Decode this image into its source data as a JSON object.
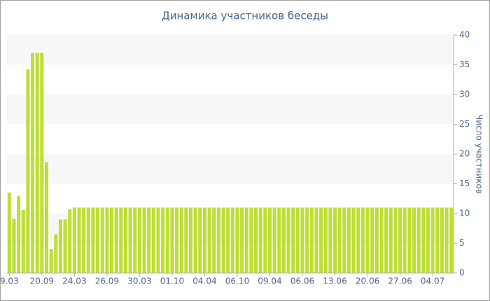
{
  "chart_data": {
    "type": "bar",
    "title": "Динамика участников беседы",
    "y_label": "Число участников",
    "y_axis_side": "right",
    "color": "#bddf35",
    "grid": "bands",
    "categories": [
      "9.03",
      null,
      null,
      null,
      null,
      null,
      null,
      "20.09",
      null,
      null,
      null,
      null,
      null,
      null,
      "24.03",
      null,
      null,
      null,
      null,
      null,
      null,
      "26.09",
      null,
      null,
      null,
      null,
      null,
      null,
      "30.03",
      null,
      null,
      null,
      null,
      null,
      null,
      "01.10",
      null,
      null,
      null,
      null,
      null,
      null,
      "04.04",
      null,
      null,
      null,
      null,
      null,
      null,
      "06.10",
      null,
      null,
      null,
      null,
      null,
      null,
      "09.04",
      null,
      null,
      null,
      null,
      null,
      null,
      "06.06",
      null,
      null,
      null,
      null,
      null,
      null,
      "13.06",
      null,
      null,
      null,
      null,
      null,
      null,
      "20.06",
      null,
      null,
      null,
      null,
      null,
      null,
      "27.06",
      null,
      null,
      null,
      null,
      null,
      null,
      "04.07",
      null,
      null,
      null,
      null
    ],
    "values": [
      13.5,
      9.1,
      12.9,
      10.6,
      34.2,
      37,
      37,
      37,
      18.6,
      4,
      6.5,
      9,
      9,
      10.7,
      11,
      11,
      11,
      11,
      11,
      11,
      11,
      11,
      11,
      11,
      11,
      11,
      11,
      11,
      11,
      11,
      11,
      11,
      11,
      11,
      11,
      11,
      11,
      11,
      11,
      11,
      11,
      11,
      11,
      11,
      11,
      11,
      11,
      11,
      11,
      11,
      11,
      11,
      11,
      11,
      11,
      11,
      11,
      11,
      11,
      11,
      11,
      11,
      11,
      11,
      11,
      11,
      11,
      11,
      11,
      11,
      11,
      11,
      11,
      11,
      11,
      11,
      11,
      11,
      11,
      11,
      11,
      11,
      11,
      11,
      11,
      11,
      11,
      11,
      11,
      11,
      11,
      11,
      11,
      11,
      11,
      11
    ],
    "ylim": [
      0,
      40
    ],
    "yticks": [
      0,
      5,
      10,
      15,
      20,
      25,
      30,
      35,
      40
    ]
  }
}
